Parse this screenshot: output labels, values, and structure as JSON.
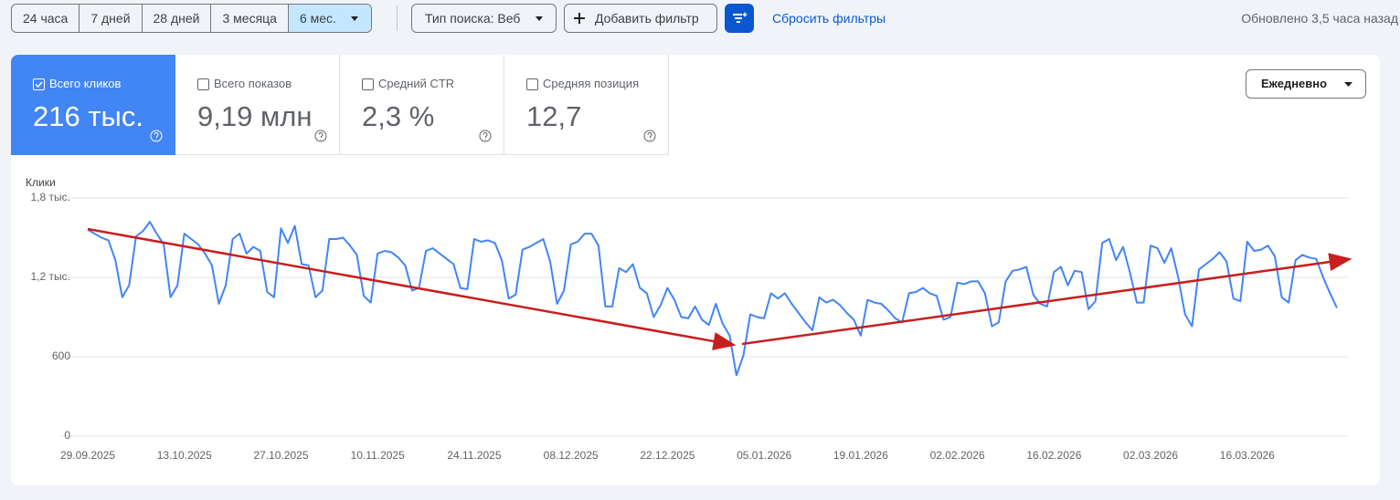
{
  "toolbar": {
    "ranges": [
      "24 часа",
      "7 дней",
      "28 дней",
      "3 месяца",
      "6 мес."
    ],
    "search_type": "Тип поиска: Веб",
    "add_filter": "Добавить фильтр",
    "reset_filters": "Сбросить фильтры",
    "updated": "Обновлено 3,5 часа назад"
  },
  "metrics": [
    {
      "label": "Всего кликов",
      "value": "216 тыс."
    },
    {
      "label": "Всего показов",
      "value": "9,19 млн"
    },
    {
      "label": "Средний CTR",
      "value": "2,3 %"
    },
    {
      "label": "Средняя позиция",
      "value": "12,7"
    }
  ],
  "granularity": "Ежедневно",
  "chart_data": {
    "type": "line",
    "y_label": "Клики",
    "color": "#4285f4",
    "grid": true,
    "ylim": [
      0,
      1800
    ],
    "yticks": [
      0,
      600,
      {
        "value": 1200,
        "label": "1,2 тыс."
      },
      {
        "value": 1800,
        "label": "1,8 тыс."
      }
    ],
    "categories": [
      "29.09.2025",
      null,
      null,
      null,
      null,
      null,
      null,
      null,
      null,
      null,
      null,
      null,
      null,
      null,
      "13.10.2025",
      null,
      null,
      null,
      null,
      null,
      null,
      null,
      null,
      null,
      null,
      null,
      null,
      null,
      "27.10.2025",
      null,
      null,
      null,
      null,
      null,
      null,
      null,
      null,
      null,
      null,
      null,
      null,
      null,
      "10.11.2025",
      null,
      null,
      null,
      null,
      null,
      null,
      null,
      null,
      null,
      null,
      null,
      null,
      null,
      "24.11.2025",
      null,
      null,
      null,
      null,
      null,
      null,
      null,
      null,
      null,
      null,
      null,
      null,
      null,
      "08.12.2025",
      null,
      null,
      null,
      null,
      null,
      null,
      null,
      null,
      null,
      null,
      null,
      null,
      null,
      "22.12.2025",
      null,
      null,
      null,
      null,
      null,
      null,
      null,
      null,
      null,
      null,
      null,
      null,
      null,
      "05.01.2026",
      null,
      null,
      null,
      null,
      null,
      null,
      null,
      null,
      null,
      null,
      null,
      null,
      null,
      "19.01.2026",
      null,
      null,
      null,
      null,
      null,
      null,
      null,
      null,
      null,
      null,
      null,
      null,
      null,
      "02.02.2026",
      null,
      null,
      null,
      null,
      null,
      null,
      null,
      null,
      null,
      null,
      null,
      null,
      null,
      "16.02.2026",
      null,
      null,
      null,
      null,
      null,
      null,
      null,
      null,
      null,
      null,
      null,
      null,
      null,
      "02.03.2026",
      null,
      null,
      null,
      null,
      null,
      null,
      null,
      null,
      null,
      null,
      null,
      null,
      null,
      "16.03.2026",
      null,
      null,
      null,
      null,
      null,
      null,
      null,
      null,
      null,
      null,
      null,
      null,
      null
    ],
    "values": [
      1560,
      1530,
      1500,
      1480,
      1330,
      1050,
      1140,
      1510,
      1550,
      1620,
      1530,
      1450,
      1050,
      1140,
      1530,
      1490,
      1450,
      1380,
      1290,
      1000,
      1140,
      1490,
      1530,
      1380,
      1430,
      1400,
      1090,
      1050,
      1570,
      1460,
      1590,
      1300,
      1290,
      1050,
      1100,
      1490,
      1490,
      1500,
      1440,
      1370,
      1060,
      1010,
      1380,
      1400,
      1390,
      1350,
      1290,
      1100,
      1120,
      1400,
      1420,
      1380,
      1340,
      1300,
      1120,
      1110,
      1490,
      1470,
      1480,
      1460,
      1330,
      1040,
      1070,
      1410,
      1430,
      1460,
      1490,
      1320,
      1000,
      1100,
      1450,
      1470,
      1530,
      1530,
      1440,
      980,
      980,
      1270,
      1240,
      1300,
      1120,
      1080,
      900,
      990,
      1120,
      1030,
      900,
      890,
      980,
      880,
      840,
      1000,
      850,
      760,
      460,
      610,
      920,
      900,
      890,
      1080,
      1040,
      1080,
      1000,
      930,
      860,
      800,
      1050,
      1010,
      1030,
      990,
      930,
      880,
      760,
      1030,
      1010,
      1000,
      950,
      890,
      860,
      1080,
      1090,
      1120,
      1080,
      1060,
      880,
      900,
      1160,
      1150,
      1170,
      1170,
      1080,
      830,
      860,
      1170,
      1250,
      1260,
      1280,
      1070,
      1000,
      980,
      1240,
      1280,
      1140,
      1250,
      1240,
      960,
      1020,
      1460,
      1490,
      1330,
      1430,
      1240,
      1010,
      1010,
      1440,
      1420,
      1310,
      1420,
      1200,
      920,
      830,
      1260,
      1300,
      1340,
      1390,
      1320,
      1040,
      1020,
      1470,
      1400,
      1410,
      1440,
      1360,
      1050,
      1010,
      1330,
      1370,
      1350,
      1340,
      1200,
      1080,
      970
    ]
  }
}
